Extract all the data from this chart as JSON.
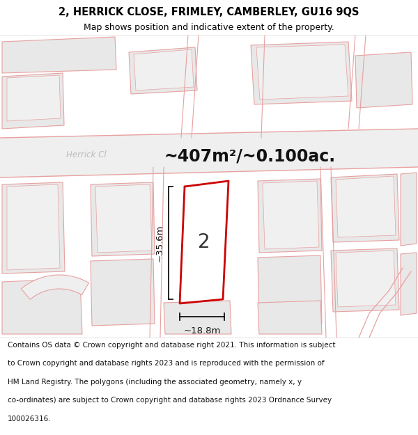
{
  "title": "2, HERRICK CLOSE, FRIMLEY, CAMBERLEY, GU16 9QS",
  "subtitle": "Map shows position and indicative extent of the property.",
  "area_text": "~407m²/~0.100ac.",
  "width_label": "~18.8m",
  "height_label": "~35.6m",
  "number_label": "2",
  "footer_lines": [
    "Contains OS data © Crown copyright and database right 2021. This information is subject",
    "to Crown copyright and database rights 2023 and is reproduced with the permission of",
    "HM Land Registry. The polygons (including the associated geometry, namely x, y",
    "co-ordinates) are subject to Crown copyright and database rights 2023 Ordnance Survey",
    "100026316."
  ],
  "map_bg": "#ffffff",
  "building_fill": "#e8e8e8",
  "building_edge": "#e8a0a0",
  "road_fill": "#efefef",
  "road_edge": "#e8a0a0",
  "plot_line_color": "#cc0000",
  "dim_line_color": "#111111",
  "street_label_color": "#bbbbbb",
  "title_fontsize": 10.5,
  "subtitle_fontsize": 9,
  "area_fontsize": 17,
  "number_fontsize": 20,
  "dim_fontsize": 9.5,
  "footer_fontsize": 7.5,
  "street_label": "Herrick Cl"
}
